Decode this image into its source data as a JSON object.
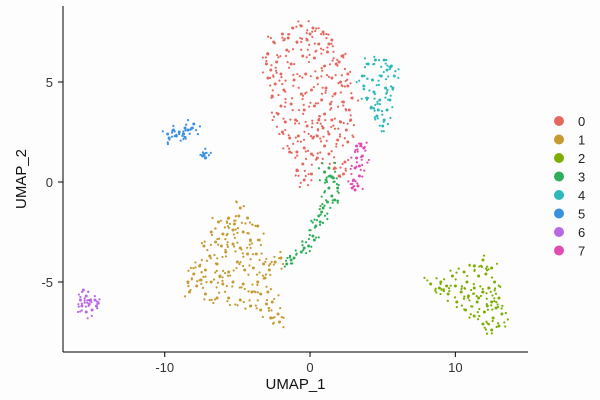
{
  "chart_data": {
    "type": "scatter",
    "title": "",
    "xlabel": "UMAP_1",
    "ylabel": "UMAP_2",
    "xlim": [
      -17,
      15
    ],
    "ylim": [
      -8.5,
      8.8
    ],
    "xticks": [
      -10,
      0,
      10
    ],
    "yticks": [
      -5,
      0,
      5
    ],
    "grid": false,
    "legend_position": "right",
    "series": [
      {
        "name": "0",
        "color": "#E5685F",
        "points": [
          [
            -2.9,
            6.4
          ],
          [
            -2.5,
            7.0
          ],
          [
            -1.9,
            7.4
          ],
          [
            -1.2,
            7.7
          ],
          [
            -0.6,
            7.8
          ],
          [
            0.2,
            7.7
          ],
          [
            0.9,
            7.5
          ],
          [
            1.5,
            7.1
          ],
          [
            2.2,
            6.3
          ],
          [
            2.6,
            5.4
          ],
          [
            2.9,
            4.2
          ],
          [
            2.8,
            3.1
          ],
          [
            2.6,
            2.0
          ],
          [
            2.4,
            1.0
          ],
          [
            2.3,
            0.4
          ],
          [
            2.0,
            0.3
          ],
          [
            1.7,
            0.7
          ],
          [
            1.3,
            1.4
          ],
          [
            1.0,
            1.8
          ],
          [
            0.5,
            1.2
          ],
          [
            0.1,
            0.4
          ],
          [
            -0.4,
            0.1
          ],
          [
            -0.9,
            0.6
          ],
          [
            -1.4,
            1.5
          ],
          [
            -1.9,
            2.5
          ],
          [
            -2.2,
            3.4
          ],
          [
            -2.6,
            4.3
          ],
          [
            -2.9,
            5.2
          ],
          [
            -3.0,
            5.9
          ],
          [
            -2.3,
            6.0
          ],
          [
            -1.6,
            6.6
          ],
          [
            -0.9,
            7.0
          ],
          [
            -0.2,
            7.1
          ],
          [
            0.6,
            6.9
          ],
          [
            1.2,
            6.5
          ],
          [
            1.8,
            5.9
          ],
          [
            2.1,
            5.0
          ],
          [
            2.3,
            4.0
          ],
          [
            2.1,
            3.0
          ],
          [
            1.9,
            2.1
          ],
          [
            -2.0,
            5.4
          ],
          [
            -1.3,
            5.9
          ],
          [
            -0.5,
            6.3
          ],
          [
            0.3,
            6.2
          ],
          [
            1.0,
            5.8
          ],
          [
            1.5,
            5.2
          ],
          [
            1.7,
            4.4
          ],
          [
            -2.4,
            4.9
          ],
          [
            -1.8,
            4.6
          ],
          [
            -1.1,
            5.1
          ],
          [
            -0.3,
            5.4
          ],
          [
            0.5,
            5.2
          ],
          [
            1.1,
            4.7
          ],
          [
            1.4,
            3.9
          ],
          [
            1.5,
            3.1
          ],
          [
            1.3,
            2.4
          ],
          [
            -2.0,
            3.8
          ],
          [
            -1.3,
            3.9
          ],
          [
            -0.6,
            4.4
          ],
          [
            0.1,
            4.6
          ],
          [
            0.8,
            4.1
          ],
          [
            1.0,
            3.4
          ],
          [
            0.9,
            2.7
          ],
          [
            -1.7,
            3.0
          ],
          [
            -1.0,
            3.1
          ],
          [
            -0.4,
            3.6
          ],
          [
            0.3,
            3.8
          ],
          [
            0.6,
            3.1
          ],
          [
            0.5,
            2.3
          ],
          [
            -1.4,
            2.2
          ],
          [
            -0.8,
            2.3
          ],
          [
            -0.2,
            2.8
          ],
          [
            0.2,
            2.2
          ],
          [
            -0.9,
            1.5
          ],
          [
            -0.4,
            1.7
          ],
          [
            0.1,
            1.4
          ],
          [
            -0.5,
            0.9
          ],
          [
            2.5,
            2.6
          ],
          [
            2.7,
            3.6
          ],
          [
            2.6,
            4.8
          ],
          [
            -2.7,
            5.6
          ],
          [
            -1.5,
            7.2
          ],
          [
            0.0,
            7.4
          ],
          [
            1.3,
            6.9
          ],
          [
            2.0,
            6.0
          ]
        ]
      },
      {
        "name": "1",
        "color": "#C59A30",
        "points": [
          [
            -7.3,
            -3.2
          ],
          [
            -6.8,
            -2.5
          ],
          [
            -6.3,
            -2.0
          ],
          [
            -5.6,
            -1.8
          ],
          [
            -4.9,
            -1.7
          ],
          [
            -4.3,
            -1.8
          ],
          [
            -3.6,
            -2.2
          ],
          [
            -3.5,
            -2.9
          ],
          [
            -3.7,
            -3.6
          ],
          [
            -3.2,
            -4.1
          ],
          [
            -3.1,
            -4.8
          ],
          [
            -2.9,
            -5.5
          ],
          [
            -2.6,
            -6.0
          ],
          [
            -2.2,
            -6.6
          ],
          [
            -2.1,
            -7.0
          ],
          [
            -2.7,
            -6.8
          ],
          [
            -3.4,
            -6.4
          ],
          [
            -4.1,
            -6.2
          ],
          [
            -4.8,
            -5.9
          ],
          [
            -5.6,
            -5.8
          ],
          [
            -6.4,
            -5.8
          ],
          [
            -7.2,
            -5.6
          ],
          [
            -8.3,
            -5.5
          ],
          [
            -8.4,
            -5.0
          ],
          [
            -8.0,
            -4.6
          ],
          [
            -7.6,
            -4.2
          ],
          [
            -6.9,
            -3.7
          ],
          [
            -6.5,
            -3.0
          ],
          [
            -6.0,
            -2.6
          ],
          [
            -5.3,
            -2.4
          ],
          [
            -4.6,
            -2.5
          ],
          [
            -4.1,
            -2.9
          ],
          [
            -4.3,
            -3.6
          ],
          [
            -3.9,
            -4.3
          ],
          [
            -3.6,
            -5.0
          ],
          [
            -3.4,
            -5.6
          ],
          [
            -4.0,
            -5.5
          ],
          [
            -4.6,
            -5.1
          ],
          [
            -5.3,
            -5.0
          ],
          [
            -6.0,
            -5.1
          ],
          [
            -6.8,
            -5.0
          ],
          [
            -7.5,
            -4.9
          ],
          [
            -7.2,
            -4.4
          ],
          [
            -6.4,
            -4.1
          ],
          [
            -5.8,
            -3.5
          ],
          [
            -5.3,
            -3.1
          ],
          [
            -4.8,
            -3.3
          ],
          [
            -5.0,
            -4.0
          ],
          [
            -4.5,
            -4.4
          ],
          [
            -5.6,
            -4.5
          ],
          [
            -6.2,
            -4.7
          ],
          [
            -2.8,
            -4.4
          ],
          [
            -2.4,
            -4.0
          ],
          [
            -2.0,
            -3.8
          ],
          [
            -4.8,
            -1.3
          ],
          [
            -5.2,
            -2.1
          ],
          [
            -3.0,
            -6.1
          ],
          [
            -7.8,
            -5.2
          ],
          [
            -6.1,
            -3.2
          ]
        ]
      },
      {
        "name": "2",
        "color": "#7CAE00",
        "points": [
          [
            8.3,
            -5.1
          ],
          [
            9.0,
            -5.0
          ],
          [
            9.8,
            -4.7
          ],
          [
            10.6,
            -4.5
          ],
          [
            11.3,
            -4.2
          ],
          [
            11.9,
            -3.9
          ],
          [
            12.5,
            -4.3
          ],
          [
            12.7,
            -5.0
          ],
          [
            13.0,
            -5.8
          ],
          [
            13.2,
            -6.6
          ],
          [
            13.0,
            -7.2
          ],
          [
            12.5,
            -7.4
          ],
          [
            11.9,
            -7.1
          ],
          [
            11.3,
            -6.7
          ],
          [
            10.7,
            -6.4
          ],
          [
            10.1,
            -6.0
          ],
          [
            9.5,
            -5.6
          ],
          [
            8.9,
            -5.3
          ],
          [
            10.0,
            -5.2
          ],
          [
            10.8,
            -5.0
          ],
          [
            11.6,
            -4.7
          ],
          [
            12.1,
            -4.6
          ],
          [
            12.3,
            -5.3
          ],
          [
            12.5,
            -6.0
          ],
          [
            12.6,
            -6.8
          ],
          [
            12.0,
            -6.5
          ],
          [
            11.5,
            -6.0
          ],
          [
            10.9,
            -5.7
          ],
          [
            11.3,
            -5.3
          ],
          [
            11.9,
            -5.5
          ],
          [
            12.2,
            -6.2
          ],
          [
            11.6,
            -5.8
          ],
          [
            10.4,
            -5.5
          ],
          [
            9.4,
            -5.2
          ],
          [
            12.8,
            -6.3
          ]
        ]
      },
      {
        "name": "3",
        "color": "#2FAE5A",
        "points": [
          [
            -1.6,
            -4.1
          ],
          [
            -1.1,
            -3.8
          ],
          [
            -0.6,
            -3.5
          ],
          [
            -0.1,
            -3.2
          ],
          [
            0.2,
            -2.7
          ],
          [
            0.4,
            -2.2
          ],
          [
            0.6,
            -1.7
          ],
          [
            0.9,
            -1.3
          ],
          [
            1.2,
            -1.0
          ],
          [
            1.5,
            -0.7
          ],
          [
            1.3,
            -0.3
          ],
          [
            1.1,
            0.1
          ],
          [
            1.0,
            0.5
          ],
          [
            1.3,
            0.7
          ],
          [
            1.6,
            0.2
          ],
          [
            1.9,
            -0.3
          ],
          [
            1.7,
            -0.9
          ],
          [
            0.7,
            -2.0
          ],
          [
            0.3,
            -2.9
          ],
          [
            -0.4,
            -3.3
          ],
          [
            -1.3,
            -3.9
          ],
          [
            1.4,
            0.3
          ],
          [
            0.8,
            -1.5
          ]
        ]
      },
      {
        "name": "4",
        "color": "#2DB8BA",
        "points": [
          [
            3.6,
            5.3
          ],
          [
            4.0,
            5.9
          ],
          [
            4.5,
            6.1
          ],
          [
            5.1,
            6.1
          ],
          [
            5.6,
            5.8
          ],
          [
            5.8,
            5.3
          ],
          [
            5.7,
            4.7
          ],
          [
            5.5,
            4.1
          ],
          [
            5.3,
            3.6
          ],
          [
            5.1,
            3.1
          ],
          [
            5.0,
            2.8
          ],
          [
            4.6,
            3.3
          ],
          [
            4.2,
            3.7
          ],
          [
            3.9,
            4.2
          ],
          [
            3.7,
            4.8
          ],
          [
            4.3,
            5.1
          ],
          [
            4.9,
            5.3
          ],
          [
            5.2,
            4.7
          ],
          [
            4.8,
            4.1
          ],
          [
            4.4,
            4.5
          ],
          [
            5.3,
            5.6
          ],
          [
            4.7,
            3.6
          ]
        ]
      },
      {
        "name": "5",
        "color": "#3A8FE0",
        "points": [
          [
            -9.8,
            2.4
          ],
          [
            -9.4,
            2.6
          ],
          [
            -9.0,
            2.5
          ],
          [
            -8.7,
            2.4
          ],
          [
            -8.4,
            2.6
          ],
          [
            -8.1,
            2.7
          ],
          [
            -8.0,
            2.9
          ],
          [
            -8.6,
            2.7
          ],
          [
            -9.2,
            2.3
          ],
          [
            -9.7,
            2.2
          ],
          [
            -7.3,
            1.4
          ],
          [
            -7.2,
            1.2
          ],
          [
            -7.4,
            1.3
          ]
        ]
      },
      {
        "name": "6",
        "color": "#B968E3",
        "points": [
          [
            -15.6,
            -5.4
          ],
          [
            -15.4,
            -5.7
          ],
          [
            -15.1,
            -5.9
          ],
          [
            -14.8,
            -5.9
          ],
          [
            -14.7,
            -6.2
          ],
          [
            -15.0,
            -6.4
          ],
          [
            -15.4,
            -6.5
          ],
          [
            -15.7,
            -6.2
          ],
          [
            -15.8,
            -5.9
          ],
          [
            -15.2,
            -6.1
          ]
        ]
      },
      {
        "name": "7",
        "color": "#E14BB4",
        "points": [
          [
            3.2,
            1.8
          ],
          [
            3.5,
            1.9
          ],
          [
            3.7,
            1.7
          ],
          [
            3.6,
            1.3
          ],
          [
            3.4,
            0.8
          ],
          [
            3.4,
            0.3
          ],
          [
            3.3,
            -0.2
          ],
          [
            3.1,
            -0.4
          ],
          [
            3.0,
            0.1
          ],
          [
            3.1,
            0.7
          ],
          [
            3.2,
            1.2
          ],
          [
            2.9,
            -0.3
          ]
        ]
      }
    ]
  }
}
